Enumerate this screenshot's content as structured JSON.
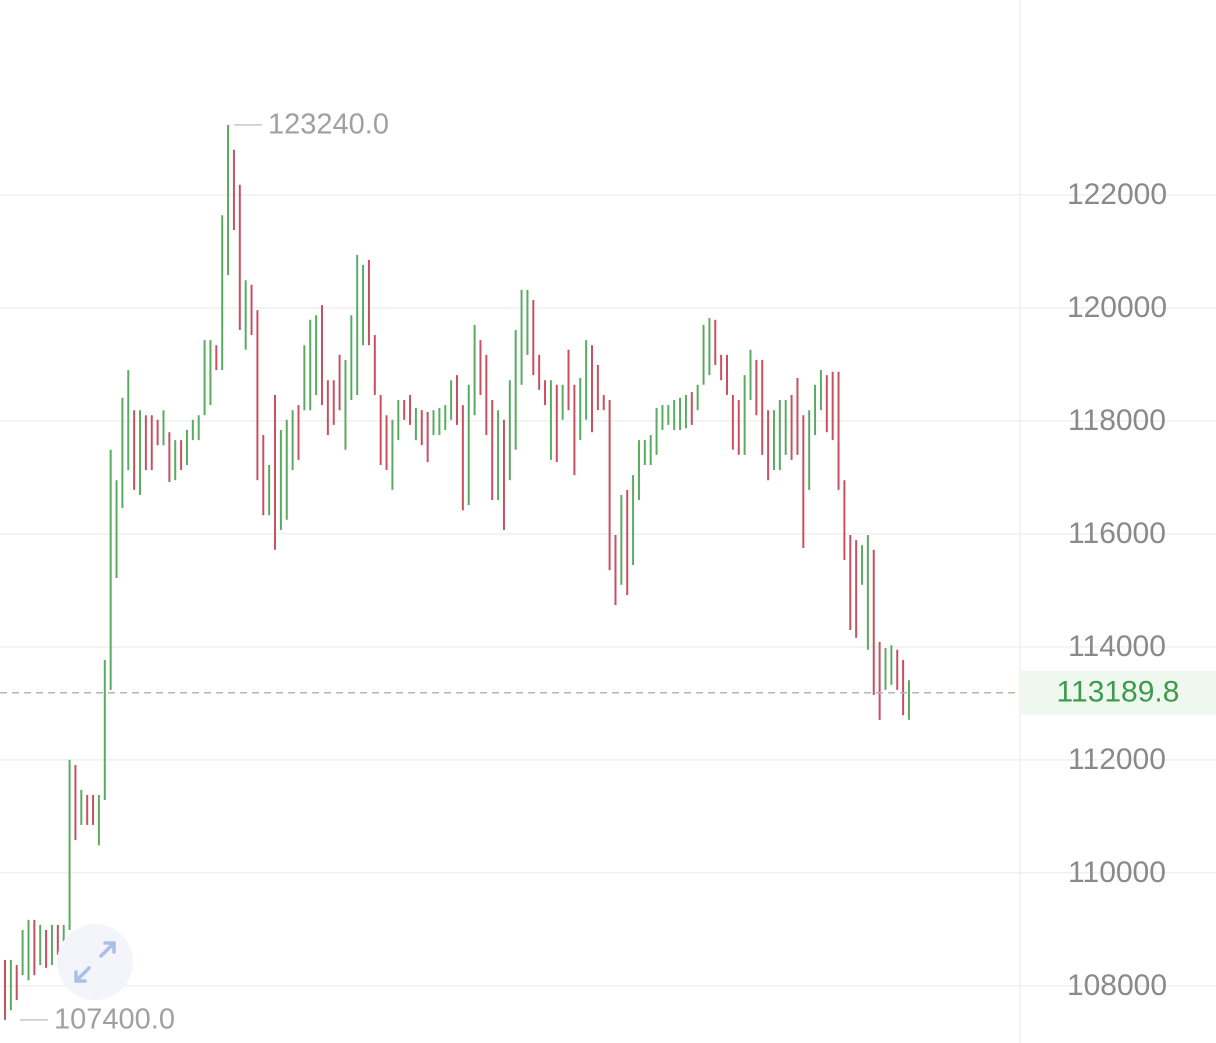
{
  "chart_data": {
    "type": "ohlc",
    "high": [
      108460,
      108460,
      108370,
      108990,
      109170,
      109170,
      109080,
      108990,
      109080,
      109080,
      109080,
      112000,
      111910,
      111470,
      111380,
      111380,
      111380,
      113770,
      117490,
      116950,
      118410,
      118900,
      118190,
      118190,
      118100,
      118100,
      118020,
      118190,
      117800,
      117660,
      117660,
      117840,
      118020,
      118100,
      119430,
      119430,
      119340,
      121640,
      123240,
      122800,
      122180,
      120490,
      120410,
      119960,
      117750,
      117220,
      118460,
      117840,
      118020,
      118190,
      118280,
      119340,
      119790,
      119870,
      120050,
      118720,
      118720,
      119170,
      119080,
      119870,
      120940,
      120760,
      120850,
      119520,
      118460,
      118100,
      118020,
      118370,
      118370,
      118460,
      118230,
      118190,
      118160,
      118190,
      118230,
      118280,
      118720,
      118810,
      118280,
      118640,
      119700,
      119430,
      119170,
      118370,
      118190,
      118020,
      118720,
      119610,
      120320,
      120320,
      120140,
      119170,
      118720,
      118720,
      118640,
      118640,
      119260,
      118640,
      118760,
      119430,
      119340,
      118990,
      118460,
      118370,
      115980,
      116690,
      116780,
      117040,
      117660,
      117660,
      117750,
      118230,
      118280,
      118280,
      118370,
      118410,
      118460,
      118510,
      118640,
      119700,
      119820,
      119790,
      119170,
      119170,
      118460,
      118370,
      118810,
      119260,
      119080,
      119080,
      118190,
      118190,
      118370,
      118370,
      118460,
      118760,
      118100,
      118190,
      118640,
      118900,
      118810,
      118870,
      118870,
      116950,
      115980,
      115890,
      115800,
      115980,
      115720,
      114090,
      113980,
      114030,
      113950,
      113770,
      113410
    ],
    "low": [
      107400,
      107570,
      107750,
      108190,
      108100,
      108190,
      108370,
      108320,
      108370,
      108550,
      108460,
      108990,
      110580,
      110850,
      110850,
      110850,
      110490,
      111290,
      113240,
      115220,
      116460,
      117130,
      116780,
      116690,
      117130,
      117130,
      117570,
      117570,
      116920,
      116950,
      117130,
      117220,
      117660,
      117660,
      118100,
      118280,
      118900,
      118900,
      120580,
      121380,
      119610,
      119260,
      119520,
      116950,
      116330,
      116330,
      115720,
      116070,
      116250,
      117130,
      117310,
      118190,
      118190,
      118460,
      118280,
      117750,
      117930,
      118190,
      117490,
      118370,
      118460,
      119340,
      119340,
      118460,
      117220,
      117130,
      116780,
      117660,
      118020,
      117930,
      117660,
      117570,
      117270,
      117750,
      117750,
      117840,
      118020,
      117930,
      116420,
      116510,
      118100,
      118460,
      117750,
      116600,
      116600,
      116070,
      116950,
      117490,
      118640,
      119170,
      118810,
      118550,
      118280,
      117310,
      117270,
      118020,
      118190,
      117040,
      117660,
      118020,
      117800,
      118190,
      118190,
      115360,
      114740,
      115100,
      114920,
      115450,
      116600,
      117220,
      117220,
      117400,
      117840,
      117930,
      117840,
      117840,
      117870,
      117930,
      118190,
      118640,
      118810,
      118990,
      118720,
      118460,
      117490,
      117400,
      117400,
      118370,
      118100,
      117400,
      116950,
      117130,
      117130,
      117400,
      117310,
      117400,
      115750,
      116780,
      117750,
      118190,
      117800,
      117660,
      116780,
      115540,
      114300,
      114160,
      115100,
      113950,
      113150,
      112710,
      113240,
      113330,
      113240,
      112790,
      112710
    ],
    "direction": [
      "down",
      "up",
      "down",
      "up",
      "up",
      "down",
      "up",
      "down",
      "up",
      "down",
      "up",
      "up",
      "down",
      "up",
      "down",
      "down",
      "up",
      "up",
      "up",
      "up",
      "up",
      "up",
      "down",
      "up",
      "down",
      "down",
      "down",
      "up",
      "down",
      "up",
      "down",
      "up",
      "up",
      "up",
      "up",
      "up",
      "down",
      "up",
      "up",
      "down",
      "down",
      "up",
      "down",
      "down",
      "down",
      "up",
      "down",
      "up",
      "up",
      "up",
      "down",
      "up",
      "up",
      "up",
      "down",
      "down",
      "down",
      "down",
      "up",
      "up",
      "up",
      "up",
      "down",
      "down",
      "down",
      "down",
      "up",
      "up",
      "down",
      "down",
      "up",
      "down",
      "down",
      "up",
      "up",
      "up",
      "up",
      "down",
      "down",
      "up",
      "up",
      "down",
      "down",
      "down",
      "up",
      "down",
      "up",
      "up",
      "up",
      "up",
      "down",
      "down",
      "down",
      "up",
      "down",
      "up",
      "down",
      "down",
      "up",
      "up",
      "down",
      "down",
      "down",
      "down",
      "down",
      "up",
      "down",
      "up",
      "up",
      "up",
      "up",
      "up",
      "up",
      "up",
      "up",
      "up",
      "up",
      "down",
      "up",
      "up",
      "up",
      "down",
      "down",
      "down",
      "down",
      "down",
      "up",
      "up",
      "down",
      "down",
      "down",
      "up",
      "up",
      "up",
      "down",
      "down",
      "down",
      "up",
      "up",
      "up",
      "down",
      "down",
      "down",
      "down",
      "down",
      "down",
      "up",
      "up",
      "down",
      "down",
      "up",
      "up",
      "down",
      "down",
      "up"
    ],
    "up_color": "#5aab62",
    "down_color": "#c85060",
    "ylim": [
      106990,
      125450
    ],
    "yticks": [
      108000,
      110000,
      112000,
      114000,
      116000,
      118000,
      120000,
      122000
    ],
    "grid": true,
    "last_price": 113189.8,
    "max_marker": {
      "value": 123240,
      "label": "123240.0"
    },
    "min_marker": {
      "value": 107400,
      "label": "107400.0"
    }
  }
}
